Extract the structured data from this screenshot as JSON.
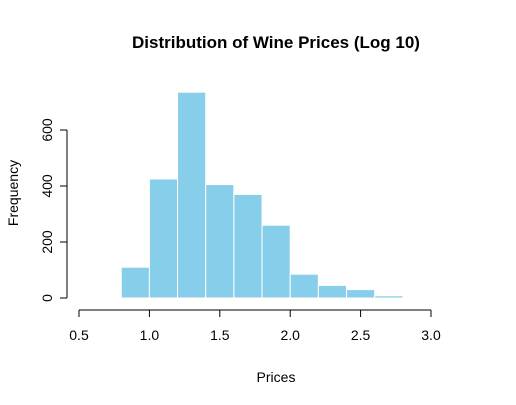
{
  "chart_data": {
    "type": "bar",
    "title": "Distribution of Wine Prices (Log 10)",
    "xlabel": "Prices",
    "ylabel": "Frequency",
    "bar_color": "#87CEEB",
    "bar_border_color": "#ffffff",
    "xlim": [
      0.5,
      3.0
    ],
    "ylim": [
      0,
      750
    ],
    "x_ticks": [
      0.5,
      1.0,
      1.5,
      2.0,
      2.5,
      3.0
    ],
    "x_tick_labels": [
      "0.5",
      "1.0",
      "1.5",
      "2.0",
      "2.5",
      "3.0"
    ],
    "y_ticks": [
      0,
      200,
      400,
      600
    ],
    "y_tick_labels": [
      "0",
      "200",
      "400",
      "600"
    ],
    "bins": [
      {
        "x0": 0.8,
        "x1": 1.0,
        "count": 110
      },
      {
        "x0": 1.0,
        "x1": 1.2,
        "count": 425
      },
      {
        "x0": 1.2,
        "x1": 1.4,
        "count": 735
      },
      {
        "x0": 1.4,
        "x1": 1.6,
        "count": 405
      },
      {
        "x0": 1.6,
        "x1": 1.8,
        "count": 370
      },
      {
        "x0": 1.8,
        "x1": 2.0,
        "count": 260
      },
      {
        "x0": 2.0,
        "x1": 2.2,
        "count": 85
      },
      {
        "x0": 2.2,
        "x1": 2.4,
        "count": 45
      },
      {
        "x0": 2.4,
        "x1": 2.6,
        "count": 30
      },
      {
        "x0": 2.6,
        "x1": 2.8,
        "count": 8
      }
    ]
  }
}
